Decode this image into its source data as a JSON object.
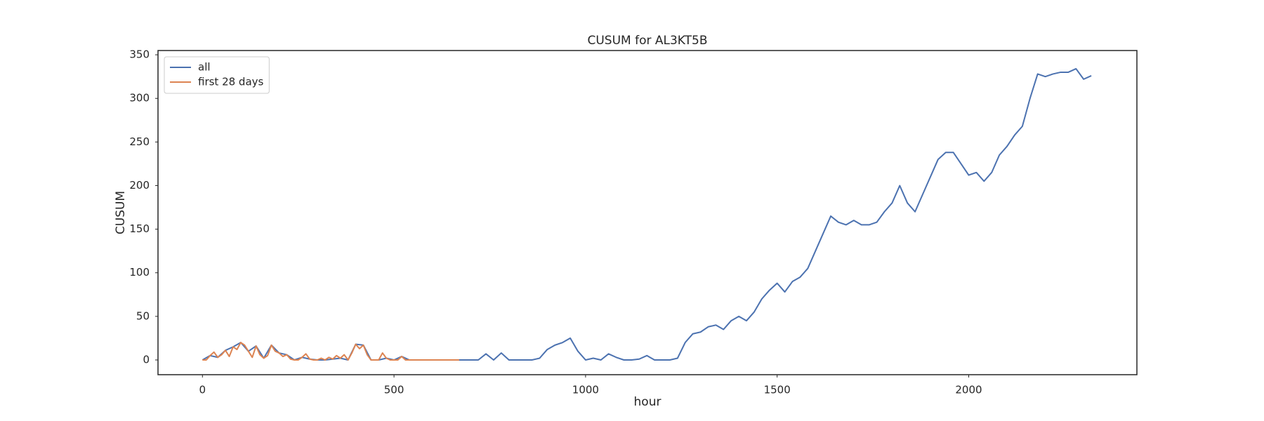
{
  "chart_data": {
    "type": "line",
    "title": "CUSUM for AL3KT5B",
    "xlabel": "hour",
    "ylabel": "CUSUM",
    "xlim": [
      -116,
      2439
    ],
    "ylim": [
      -16.9,
      354.9
    ],
    "xticks": [
      0,
      500,
      1000,
      1500,
      2000
    ],
    "yticks": [
      0,
      50,
      100,
      150,
      200,
      250,
      300,
      350
    ],
    "grid": false,
    "legend": "upper left",
    "series": [
      {
        "name": "all",
        "color": "#4c72b0",
        "x": [
          0,
          20,
          40,
          60,
          80,
          100,
          120,
          140,
          160,
          180,
          200,
          220,
          240,
          260,
          280,
          300,
          320,
          340,
          360,
          380,
          400,
          420,
          440,
          460,
          480,
          500,
          520,
          540,
          560,
          580,
          600,
          620,
          640,
          660,
          680,
          700,
          720,
          740,
          760,
          780,
          800,
          820,
          840,
          860,
          880,
          900,
          920,
          940,
          960,
          980,
          1000,
          1020,
          1040,
          1060,
          1080,
          1100,
          1120,
          1140,
          1160,
          1180,
          1200,
          1220,
          1240,
          1260,
          1280,
          1300,
          1320,
          1340,
          1360,
          1380,
          1400,
          1420,
          1440,
          1460,
          1480,
          1500,
          1520,
          1540,
          1560,
          1580,
          1600,
          1620,
          1640,
          1660,
          1680,
          1700,
          1720,
          1740,
          1760,
          1780,
          1800,
          1820,
          1840,
          1860,
          1880,
          1900,
          1920,
          1940,
          1960,
          1980,
          2000,
          2020,
          2040,
          2060,
          2080,
          2100,
          2120,
          2140,
          2160,
          2180,
          2200,
          2220,
          2240,
          2260,
          2280,
          2300,
          2320
        ],
        "values": [
          0,
          5,
          3,
          11,
          15,
          20,
          10,
          16,
          2,
          17,
          8,
          6,
          0,
          3,
          1,
          0,
          0,
          1,
          2,
          0,
          18,
          17,
          0,
          0,
          2,
          0,
          4,
          0,
          0,
          0,
          0,
          0,
          0,
          0,
          0,
          0,
          0,
          7,
          0,
          8,
          0,
          0,
          0,
          0,
          2,
          12,
          17,
          20,
          25,
          10,
          0,
          2,
          0,
          7,
          3,
          0,
          0,
          1,
          5,
          0,
          0,
          0,
          2,
          20,
          30,
          32,
          38,
          40,
          35,
          45,
          50,
          45,
          55,
          70,
          80,
          88,
          78,
          90,
          95,
          105,
          125,
          145,
          165,
          158,
          155,
          160,
          155,
          155,
          158,
          170,
          180,
          200,
          180,
          170,
          190,
          210,
          230,
          238,
          238,
          225,
          212,
          215,
          205,
          215,
          235,
          245,
          258,
          268,
          300,
          328,
          325,
          328,
          330,
          330,
          334,
          322,
          326
        ]
      },
      {
        "name": "first 28 days",
        "color": "#dd8452",
        "x": [
          0,
          10,
          20,
          30,
          40,
          50,
          60,
          70,
          80,
          90,
          100,
          110,
          120,
          130,
          140,
          150,
          160,
          170,
          180,
          190,
          200,
          210,
          220,
          230,
          240,
          250,
          260,
          270,
          280,
          290,
          300,
          310,
          320,
          330,
          340,
          350,
          360,
          370,
          380,
          390,
          400,
          410,
          420,
          430,
          440,
          450,
          460,
          470,
          480,
          490,
          500,
          510,
          520,
          530,
          540,
          550,
          560,
          570,
          580,
          590,
          600,
          610,
          620,
          630,
          640,
          650,
          660,
          670
        ],
        "values": [
          0,
          0,
          5,
          9,
          3,
          6,
          11,
          4,
          15,
          12,
          20,
          17,
          10,
          3,
          16,
          6,
          2,
          5,
          17,
          10,
          8,
          4,
          6,
          1,
          0,
          0,
          3,
          7,
          1,
          0,
          0,
          2,
          0,
          3,
          1,
          5,
          2,
          6,
          0,
          8,
          18,
          13,
          17,
          6,
          0,
          0,
          0,
          8,
          2,
          0,
          0,
          0,
          4,
          0,
          0,
          0,
          0,
          0,
          0,
          0,
          0,
          0,
          0,
          0,
          0,
          0,
          0,
          0
        ]
      }
    ]
  }
}
